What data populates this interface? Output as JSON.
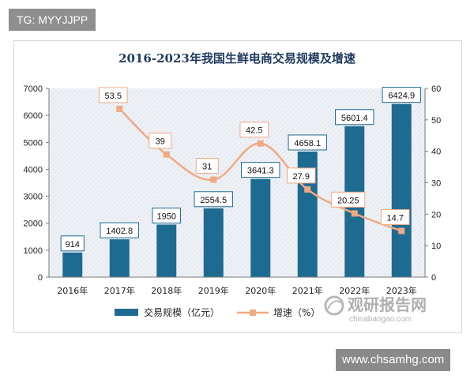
{
  "overlay": {
    "tag_text": "TG: MYYJJPP",
    "footer_url": "www.chsamhg.com"
  },
  "watermark": {
    "brand": "观研报告网",
    "domain": "chinabaogao.com"
  },
  "colors": {
    "bar": "#1e6b92",
    "line": "#f0aa82",
    "marker": "#f0aa82",
    "label_border": "#1e6b92",
    "line_label_border": "#f0aa82",
    "plot_bg": "#eef1f6"
  },
  "chart_data": {
    "type": "bar",
    "title": "2016-2023年我国生鲜电商交易规模及增速",
    "categories": [
      "2016年",
      "2017年",
      "2018年",
      "2019年",
      "2020年",
      "2021年",
      "2022年",
      "2023年"
    ],
    "series": [
      {
        "name": "交易规模（亿元）",
        "type": "bar",
        "axis": "left",
        "values": [
          914,
          1402.8,
          1950,
          2554.5,
          3641.3,
          4658.1,
          5601.4,
          6424.9
        ],
        "labels": [
          "914",
          "1402.8",
          "1950",
          "2554.5",
          "3641.3",
          "4658.1",
          "5601.4",
          "6424.9"
        ]
      },
      {
        "name": "增速（%）",
        "type": "line",
        "axis": "right",
        "values": [
          null,
          53.5,
          39,
          31,
          42.5,
          27.9,
          20.25,
          14.7
        ],
        "labels": [
          null,
          "53.5",
          "39",
          "31",
          "42.5",
          "27.9",
          "20.25",
          "14.7"
        ]
      }
    ],
    "ylim_left": [
      0,
      7000
    ],
    "yticks_left": [
      "0",
      "1000",
      "2000",
      "3000",
      "4000",
      "5000",
      "6000",
      "7000"
    ],
    "ylim_right": [
      0,
      60
    ],
    "yticks_right": [
      "0",
      "10",
      "20",
      "30",
      "40",
      "50",
      "60"
    ],
    "legend_position": "bottom",
    "grid": false
  }
}
